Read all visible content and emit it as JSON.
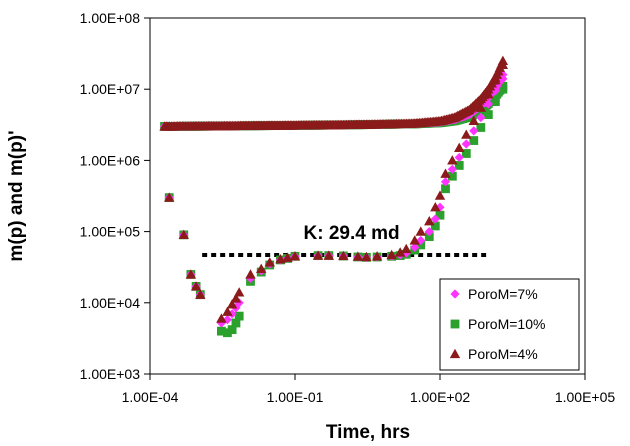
{
  "chart_data": {
    "type": "scatter",
    "x_scale": "log",
    "y_scale": "log",
    "xlabel": "Time, hrs",
    "ylabel": "m(p) and m(p)'",
    "xlim": [
      0.0001,
      100000
    ],
    "ylim": [
      1000,
      100000000
    ],
    "x_ticks": [
      {
        "value": 0.0001,
        "label": "1.00E-04"
      },
      {
        "value": 0.1,
        "label": "1.00E-01"
      },
      {
        "value": 100,
        "label": "1.00E+02"
      },
      {
        "value": 100000,
        "label": "1.00E+05"
      }
    ],
    "y_ticks": [
      {
        "value": 1000,
        "label": "1.00E+03"
      },
      {
        "value": 10000,
        "label": "1.00E+04"
      },
      {
        "value": 100000,
        "label": "1.00E+05"
      },
      {
        "value": 1000000,
        "label": "1.00E+06"
      },
      {
        "value": 10000000,
        "label": "1.00E+07"
      },
      {
        "value": 100000000,
        "label": "1.00E+08"
      }
    ],
    "grid": false,
    "legend_position": "bottom-right",
    "annotation": {
      "text": "K: 29.4 md",
      "line_y": 47000,
      "line_x_range": [
        0.0012,
        900
      ]
    },
    "series": [
      {
        "name": "PoroM=7%",
        "marker": "diamond",
        "color": "#ff33ff",
        "pressure": {
          "x": [
            0.0002,
            0.0003,
            0.0005,
            0.001,
            0.003,
            0.01,
            0.03,
            0.1,
            0.3,
            1,
            3,
            10,
            30,
            100,
            200,
            400,
            700,
            1000,
            1500,
            2000
          ],
          "y": [
            3000000,
            3000000,
            3010000,
            3020000,
            3040000,
            3060000,
            3080000,
            3100000,
            3120000,
            3150000,
            3180000,
            3220000,
            3280000,
            3450000,
            3750000,
            4400000,
            5800000,
            7600000,
            11000000,
            16000000
          ]
        },
        "derivative": {
          "x": [
            0.00025,
            0.0005,
            0.0007,
            0.0009,
            0.0011,
            0.003,
            0.004,
            0.005,
            0.006,
            0.007,
            0.012,
            0.02,
            0.03,
            0.05,
            0.07,
            0.1,
            0.3,
            0.5,
            1,
            2,
            3,
            5,
            10,
            15,
            20,
            30,
            40,
            60,
            80,
            100,
            130,
            180,
            250,
            350,
            500,
            700,
            1000,
            1400,
            2000
          ],
          "y": [
            300000,
            90000,
            25000,
            17000,
            13000,
            5200,
            5800,
            7000,
            8500,
            10000,
            22000,
            28000,
            35000,
            40000,
            42000,
            45000,
            46000,
            46000,
            45500,
            44000,
            43500,
            44000,
            45000,
            47000,
            50000,
            60000,
            75000,
            100000,
            150000,
            220000,
            500000,
            750000,
            1100000,
            1700000,
            2600000,
            4000000,
            6200000,
            9500000,
            14000000
          ]
        }
      },
      {
        "name": "PoroM=10%",
        "marker": "square",
        "color": "#2ca02c",
        "pressure": {
          "x": [
            0.0002,
            0.0003,
            0.0005,
            0.001,
            0.003,
            0.01,
            0.03,
            0.1,
            0.3,
            1,
            3,
            10,
            30,
            100,
            200,
            400,
            700,
            1000,
            1500,
            2000
          ],
          "y": [
            3000000,
            3000000,
            3010000,
            3020000,
            3040000,
            3060000,
            3080000,
            3100000,
            3120000,
            3150000,
            3180000,
            3220000,
            3260000,
            3380000,
            3600000,
            4100000,
            5000000,
            6300000,
            8500000,
            11000000
          ]
        },
        "derivative": {
          "x": [
            0.00025,
            0.0005,
            0.0007,
            0.0009,
            0.0011,
            0.003,
            0.004,
            0.005,
            0.006,
            0.007,
            0.012,
            0.02,
            0.03,
            0.05,
            0.07,
            0.1,
            0.3,
            0.5,
            1,
            2,
            3,
            5,
            10,
            15,
            20,
            30,
            40,
            60,
            80,
            100,
            130,
            180,
            250,
            350,
            500,
            700,
            1000,
            1400,
            2000
          ],
          "y": [
            300000,
            90000,
            25000,
            17000,
            13000,
            4000,
            3800,
            4200,
            5200,
            6500,
            20000,
            27000,
            34000,
            40000,
            42000,
            45000,
            46000,
            46000,
            45500,
            44000,
            43500,
            44000,
            45000,
            46000,
            48000,
            55000,
            65000,
            85000,
            120000,
            170000,
            400000,
            600000,
            850000,
            1250000,
            1900000,
            2900000,
            4400000,
            6700000,
            10000000
          ]
        }
      },
      {
        "name": "PoroM=4%",
        "marker": "triangle",
        "color": "#8b1a1a",
        "pressure": {
          "x": [
            0.0002,
            0.0003,
            0.0005,
            0.001,
            0.003,
            0.01,
            0.03,
            0.1,
            0.3,
            1,
            3,
            10,
            30,
            100,
            200,
            400,
            700,
            1000,
            1500,
            2000
          ],
          "y": [
            3000000,
            3000000,
            3010000,
            3020000,
            3040000,
            3060000,
            3080000,
            3100000,
            3120000,
            3150000,
            3180000,
            3230000,
            3300000,
            3550000,
            4000000,
            5100000,
            7300000,
            10000000,
            16000000,
            25000000
          ]
        },
        "derivative": {
          "x": [
            0.00025,
            0.0005,
            0.0007,
            0.0009,
            0.0011,
            0.003,
            0.004,
            0.005,
            0.006,
            0.007,
            0.012,
            0.02,
            0.03,
            0.05,
            0.07,
            0.1,
            0.3,
            0.5,
            1,
            2,
            3,
            5,
            10,
            15,
            20,
            30,
            40,
            60,
            80,
            100,
            130,
            180,
            250,
            350,
            500,
            700,
            1000,
            1400,
            2000
          ],
          "y": [
            300000,
            90000,
            25000,
            17000,
            13000,
            6000,
            7500,
            9500,
            11500,
            14000,
            25000,
            30000,
            37000,
            41000,
            43000,
            45000,
            46000,
            46000,
            45500,
            44500,
            44000,
            45000,
            47000,
            51000,
            57000,
            75000,
            100000,
            140000,
            220000,
            320000,
            650000,
            1000000,
            1500000,
            2300000,
            3600000,
            5500000,
            8500000,
            13500000,
            22000000
          ]
        }
      }
    ]
  }
}
